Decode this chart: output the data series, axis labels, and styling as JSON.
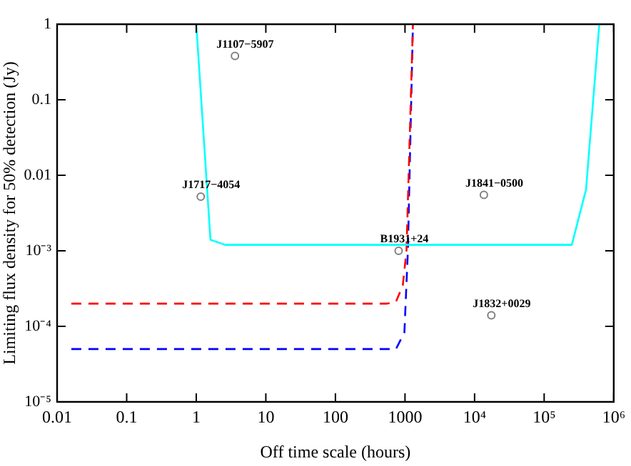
{
  "chart_data": {
    "type": "line",
    "xlabel": "Off time scale (hours)",
    "ylabel": "Limiting flux density for 50% detection (Jy)",
    "log": "xy",
    "grid": false,
    "legend": false,
    "xlim": [
      0.01,
      1000000
    ],
    "ylim": [
      1e-05,
      1
    ],
    "xticks": [
      0.01,
      0.1,
      1,
      10,
      100,
      1000,
      {
        "value": 10000,
        "label": "10⁴"
      },
      {
        "value": 100000,
        "label": "10⁵"
      },
      {
        "value": 1000000,
        "label": "10⁶"
      }
    ],
    "yticks": [
      {
        "value": 1e-05,
        "label": "10⁻⁵"
      },
      {
        "value": 0.0001,
        "label": "10⁻⁴"
      },
      {
        "value": 0.001,
        "label": "10⁻³"
      },
      0.01,
      0.1,
      1
    ],
    "series": [
      {
        "color": "#00ffff",
        "line_style": "solid",
        "marker": "none",
        "x": [
          1,
          1.6,
          2.6,
          250000,
          400000,
          620000
        ],
        "values": [
          1,
          0.0014,
          0.0012,
          0.0012,
          0.0065,
          1
        ]
      },
      {
        "color": "#ff0000",
        "line_style": "dashed",
        "marker": "none",
        "x": [
          0.016,
          550,
          740,
          930,
          1050,
          1300
        ],
        "values": [
          0.0002,
          0.0002,
          0.00021,
          0.00035,
          0.001,
          1
        ]
      },
      {
        "color": "#0000ff",
        "line_style": "dashed",
        "marker": "none",
        "x": [
          0.016,
          740,
          980,
          1100,
          1300
        ],
        "values": [
          5e-05,
          5e-05,
          8.3e-05,
          0.001,
          1
        ]
      },
      {
        "type": "scatter",
        "color": "#808080",
        "marker": "circle",
        "x": [
          3.6,
          1.16,
          13600,
          810,
          17400
        ],
        "values": [
          0.38,
          0.0052,
          0.0055,
          0.001,
          0.00014
        ]
      }
    ],
    "annotations": [
      {
        "text": "J1107−5907",
        "x": 3.6,
        "y": 0.38
      },
      {
        "text": "J1717−4054",
        "x": 1.16,
        "y": 0.0052
      },
      {
        "text": "J1841−0500",
        "x": 13600,
        "y": 0.0055
      },
      {
        "text": "B1931+24",
        "x": 810,
        "y": 0.001
      },
      {
        "text": "J1832+0029",
        "x": 17400,
        "y": 0.00014
      }
    ]
  }
}
